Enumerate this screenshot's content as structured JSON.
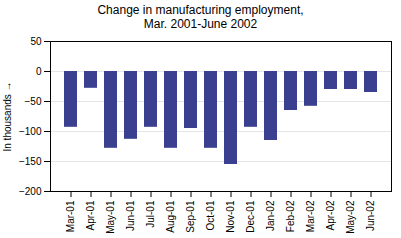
{
  "chart_data": {
    "type": "bar",
    "title": "Change in manufacturing employment,\nMar. 2001-June 2002",
    "ylabel": "In thousands",
    "categories": [
      "Mar-01",
      "Apr-01",
      "May-01",
      "Jun-01",
      "Jul-01",
      "Aug-01",
      "Sep-01",
      "Oct-01",
      "Nov-01",
      "Dec-01",
      "Jan-02",
      "Feb-02",
      "Mar-02",
      "Apr-02",
      "May-02",
      "Jun-02"
    ],
    "values": [
      -93,
      -28,
      -128,
      -113,
      -93,
      -128,
      -95,
      -128,
      -155,
      -93,
      -115,
      -65,
      -58,
      -30,
      -30,
      -35
    ],
    "color": "#3A3F8F",
    "ylim": [
      -200,
      50
    ],
    "yticks": [
      -200,
      -150,
      -100,
      -50,
      0,
      50
    ],
    "grid": true
  }
}
